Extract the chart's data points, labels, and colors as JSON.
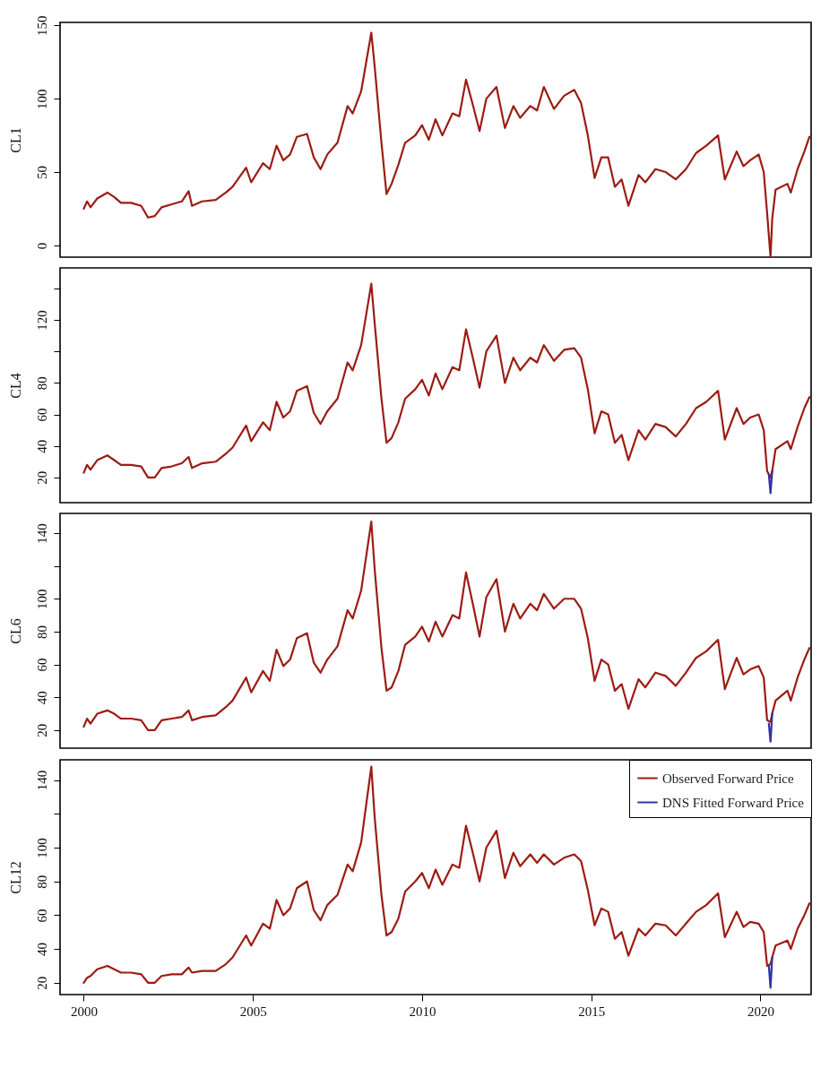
{
  "chart_data": [
    {
      "type": "line",
      "ylabel": "CL1",
      "tick_labels": "y",
      "legend": false,
      "grid": false,
      "xlim": [
        1999.3,
        2021.5
      ],
      "xticks": [
        2000,
        2005,
        2010,
        2015,
        2020
      ],
      "ylim": [
        -8,
        152
      ],
      "yticks": [
        0,
        50,
        100,
        150
      ],
      "x": [
        2000.0,
        2000.1,
        2000.2,
        2000.4,
        2000.7,
        2000.9,
        2001.1,
        2001.4,
        2001.7,
        2001.9,
        2002.1,
        2002.3,
        2002.6,
        2002.9,
        2003.1,
        2003.2,
        2003.5,
        2003.9,
        2004.2,
        2004.4,
        2004.8,
        2004.95,
        2005.3,
        2005.5,
        2005.7,
        2005.9,
        2006.1,
        2006.3,
        2006.6,
        2006.8,
        2007.0,
        2007.2,
        2007.5,
        2007.8,
        2007.95,
        2008.2,
        2008.5,
        2008.6,
        2008.8,
        2008.95,
        2009.1,
        2009.3,
        2009.5,
        2009.8,
        2010.0,
        2010.2,
        2010.4,
        2010.6,
        2010.9,
        2011.1,
        2011.3,
        2011.5,
        2011.7,
        2011.9,
        2012.2,
        2012.45,
        2012.7,
        2012.9,
        2013.2,
        2013.4,
        2013.6,
        2013.9,
        2014.2,
        2014.5,
        2014.7,
        2014.9,
        2015.1,
        2015.3,
        2015.5,
        2015.7,
        2015.9,
        2016.1,
        2016.4,
        2016.6,
        2016.9,
        2017.2,
        2017.5,
        2017.8,
        2018.1,
        2018.4,
        2018.75,
        2018.95,
        2019.3,
        2019.5,
        2019.7,
        2019.95,
        2020.1,
        2020.2,
        2020.3,
        2020.35,
        2020.45,
        2020.8,
        2020.9,
        2021.1,
        2021.3,
        2021.45
      ],
      "series": [
        {
          "color": "#9c1c14",
          "values": [
            25,
            30,
            26,
            32,
            36,
            33,
            29,
            29,
            27,
            19,
            20,
            26,
            28,
            30,
            37,
            27,
            30,
            31,
            36,
            40,
            53,
            43,
            56,
            52,
            68,
            58,
            62,
            74,
            76,
            60,
            52,
            62,
            70,
            95,
            90,
            105,
            145,
            122,
            70,
            35,
            42,
            55,
            70,
            75,
            82,
            72,
            86,
            75,
            90,
            88,
            113,
            96,
            78,
            100,
            108,
            80,
            95,
            87,
            95,
            92,
            108,
            93,
            102,
            106,
            97,
            75,
            46,
            60,
            60,
            40,
            45,
            27,
            48,
            43,
            52,
            50,
            45,
            52,
            63,
            68,
            75,
            45,
            64,
            54,
            58,
            62,
            50,
            22,
            -8,
            18,
            38,
            42,
            36,
            52,
            64,
            74
          ]
        }
      ]
    },
    {
      "type": "line",
      "ylabel": "CL4",
      "tick_labels": "y",
      "legend": false,
      "grid": false,
      "xlim": [
        1999.3,
        2021.5
      ],
      "xticks": [
        2000,
        2005,
        2010,
        2015,
        2020
      ],
      "ylim": [
        4,
        153
      ],
      "yticks": [
        20,
        40,
        60,
        80,
        {
          "value": 100,
          "label": null
        },
        120,
        {
          "value": 140,
          "label": null
        }
      ],
      "x": [
        2000.0,
        2000.1,
        2000.2,
        2000.4,
        2000.7,
        2000.9,
        2001.1,
        2001.4,
        2001.7,
        2001.9,
        2002.1,
        2002.3,
        2002.6,
        2002.9,
        2003.1,
        2003.2,
        2003.5,
        2003.9,
        2004.2,
        2004.4,
        2004.8,
        2004.95,
        2005.3,
        2005.5,
        2005.7,
        2005.9,
        2006.1,
        2006.3,
        2006.6,
        2006.8,
        2007.0,
        2007.2,
        2007.5,
        2007.8,
        2007.95,
        2008.2,
        2008.5,
        2008.6,
        2008.8,
        2008.95,
        2009.1,
        2009.3,
        2009.5,
        2009.8,
        2010.0,
        2010.2,
        2010.4,
        2010.6,
        2010.9,
        2011.1,
        2011.3,
        2011.5,
        2011.7,
        2011.9,
        2012.2,
        2012.45,
        2012.7,
        2012.9,
        2013.2,
        2013.4,
        2013.6,
        2013.9,
        2014.2,
        2014.5,
        2014.7,
        2014.9,
        2015.1,
        2015.3,
        2015.5,
        2015.7,
        2015.9,
        2016.1,
        2016.4,
        2016.6,
        2016.9,
        2017.2,
        2017.5,
        2017.8,
        2018.1,
        2018.4,
        2018.75,
        2018.95,
        2019.3,
        2019.5,
        2019.7,
        2019.95,
        2020.1,
        2020.2,
        2020.3,
        2020.35,
        2020.45,
        2020.8,
        2020.9,
        2021.1,
        2021.3,
        2021.45
      ],
      "series": [
        {
          "color": "#9c1c14",
          "values": [
            23,
            28,
            25,
            31,
            34,
            31,
            28,
            28,
            27,
            20,
            20,
            26,
            27,
            29,
            33,
            26,
            29,
            30,
            35,
            39,
            53,
            43,
            55,
            50,
            68,
            58,
            62,
            75,
            78,
            61,
            54,
            62,
            70,
            93,
            88,
            104,
            143,
            118,
            70,
            42,
            45,
            55,
            70,
            76,
            82,
            72,
            86,
            76,
            90,
            88,
            114,
            96,
            77,
            100,
            110,
            80,
            96,
            88,
            96,
            93,
            104,
            94,
            101,
            102,
            96,
            76,
            48,
            62,
            60,
            42,
            47,
            31,
            50,
            44,
            54,
            52,
            46,
            54,
            64,
            68,
            75,
            44,
            64,
            54,
            58,
            60,
            50,
            24,
            20,
            24,
            38,
            43,
            38,
            52,
            64,
            71
          ]
        },
        {
          "color": "#3232a8",
          "x": [
            2020.25,
            2020.3,
            2020.35
          ],
          "values": [
            22,
            10,
            24
          ]
        }
      ]
    },
    {
      "type": "line",
      "ylabel": "CL6",
      "tick_labels": "y",
      "legend": false,
      "grid": false,
      "xlim": [
        1999.3,
        2021.5
      ],
      "xticks": [
        2000,
        2005,
        2010,
        2015,
        2020
      ],
      "ylim": [
        9,
        152
      ],
      "yticks": [
        20,
        40,
        60,
        80,
        100,
        {
          "value": 120,
          "label": null
        },
        140
      ],
      "x": [
        2000.0,
        2000.1,
        2000.2,
        2000.4,
        2000.7,
        2000.9,
        2001.1,
        2001.4,
        2001.7,
        2001.9,
        2002.1,
        2002.3,
        2002.6,
        2002.9,
        2003.1,
        2003.2,
        2003.5,
        2003.9,
        2004.2,
        2004.4,
        2004.8,
        2004.95,
        2005.3,
        2005.5,
        2005.7,
        2005.9,
        2006.1,
        2006.3,
        2006.6,
        2006.8,
        2007.0,
        2007.2,
        2007.5,
        2007.8,
        2007.95,
        2008.2,
        2008.5,
        2008.6,
        2008.8,
        2008.95,
        2009.1,
        2009.3,
        2009.5,
        2009.8,
        2010.0,
        2010.2,
        2010.4,
        2010.6,
        2010.9,
        2011.1,
        2011.3,
        2011.5,
        2011.7,
        2011.9,
        2012.2,
        2012.45,
        2012.7,
        2012.9,
        2013.2,
        2013.4,
        2013.6,
        2013.9,
        2014.2,
        2014.5,
        2014.7,
        2014.9,
        2015.1,
        2015.3,
        2015.5,
        2015.7,
        2015.9,
        2016.1,
        2016.4,
        2016.6,
        2016.9,
        2017.2,
        2017.5,
        2017.8,
        2018.1,
        2018.4,
        2018.75,
        2018.95,
        2019.3,
        2019.5,
        2019.7,
        2019.95,
        2020.1,
        2020.2,
        2020.3,
        2020.35,
        2020.45,
        2020.8,
        2020.9,
        2021.1,
        2021.3,
        2021.45
      ],
      "series": [
        {
          "color": "#9c1c14",
          "values": [
            22,
            27,
            24,
            30,
            32,
            30,
            27,
            27,
            26,
            20,
            20,
            26,
            27,
            28,
            32,
            26,
            28,
            29,
            34,
            38,
            52,
            43,
            56,
            50,
            69,
            59,
            63,
            76,
            79,
            61,
            55,
            63,
            71,
            93,
            88,
            105,
            147,
            118,
            70,
            44,
            46,
            56,
            72,
            77,
            83,
            74,
            86,
            77,
            90,
            88,
            116,
            97,
            77,
            101,
            112,
            80,
            97,
            88,
            97,
            93,
            103,
            94,
            100,
            100,
            94,
            76,
            50,
            63,
            60,
            44,
            48,
            33,
            51,
            46,
            55,
            53,
            47,
            55,
            64,
            68,
            75,
            45,
            64,
            54,
            57,
            59,
            52,
            26,
            25,
            30,
            38,
            44,
            38,
            52,
            63,
            70
          ]
        },
        {
          "color": "#3232a8",
          "x": [
            2020.25,
            2020.3,
            2020.35
          ],
          "values": [
            24,
            13,
            30
          ]
        }
      ]
    },
    {
      "type": "line",
      "ylabel": "CL12",
      "legend": "top right",
      "grid": false,
      "xlim": [
        1999.3,
        2021.5
      ],
      "xticks": [
        2000,
        2005,
        2010,
        2015,
        2020
      ],
      "ylim": [
        13,
        152
      ],
      "yticks": [
        20,
        40,
        60,
        80,
        100,
        {
          "value": 120,
          "label": null
        },
        140
      ],
      "x": [
        2000.0,
        2000.1,
        2000.2,
        2000.4,
        2000.7,
        2000.9,
        2001.1,
        2001.4,
        2001.7,
        2001.9,
        2002.1,
        2002.3,
        2002.6,
        2002.9,
        2003.1,
        2003.2,
        2003.5,
        2003.9,
        2004.2,
        2004.4,
        2004.8,
        2004.95,
        2005.3,
        2005.5,
        2005.7,
        2005.9,
        2006.1,
        2006.3,
        2006.6,
        2006.8,
        2007.0,
        2007.2,
        2007.5,
        2007.8,
        2007.95,
        2008.2,
        2008.5,
        2008.6,
        2008.8,
        2008.95,
        2009.1,
        2009.3,
        2009.5,
        2009.8,
        2010.0,
        2010.2,
        2010.4,
        2010.6,
        2010.9,
        2011.1,
        2011.3,
        2011.5,
        2011.7,
        2011.9,
        2012.2,
        2012.45,
        2012.7,
        2012.9,
        2013.2,
        2013.4,
        2013.6,
        2013.9,
        2014.2,
        2014.5,
        2014.7,
        2014.9,
        2015.1,
        2015.3,
        2015.5,
        2015.7,
        2015.9,
        2016.1,
        2016.4,
        2016.6,
        2016.9,
        2017.2,
        2017.5,
        2017.8,
        2018.1,
        2018.4,
        2018.75,
        2018.95,
        2019.3,
        2019.5,
        2019.7,
        2019.95,
        2020.1,
        2020.2,
        2020.3,
        2020.35,
        2020.45,
        2020.8,
        2020.9,
        2021.1,
        2021.3,
        2021.45
      ],
      "series": [
        {
          "name": "Observed Forward Price",
          "color": "#9c1c14",
          "values": [
            20,
            23,
            24,
            28,
            30,
            28,
            26,
            26,
            25,
            20,
            20,
            24,
            25,
            25,
            29,
            26,
            27,
            27,
            31,
            35,
            48,
            42,
            55,
            52,
            69,
            60,
            64,
            76,
            80,
            63,
            57,
            66,
            72,
            90,
            86,
            103,
            148,
            118,
            72,
            48,
            50,
            58,
            74,
            80,
            85,
            76,
            87,
            78,
            90,
            88,
            113,
            97,
            80,
            100,
            110,
            82,
            97,
            89,
            96,
            91,
            96,
            90,
            94,
            96,
            92,
            75,
            54,
            64,
            62,
            46,
            50,
            36,
            52,
            48,
            55,
            54,
            48,
            55,
            62,
            66,
            73,
            47,
            62,
            53,
            56,
            55,
            50,
            30,
            31,
            35,
            42,
            45,
            40,
            52,
            60,
            67
          ]
        },
        {
          "name": "DNS Fitted Forward Price",
          "color": "#3232a8",
          "x": [
            2020.25,
            2020.3,
            2020.35
          ],
          "values": [
            30,
            17,
            35
          ]
        }
      ]
    }
  ]
}
